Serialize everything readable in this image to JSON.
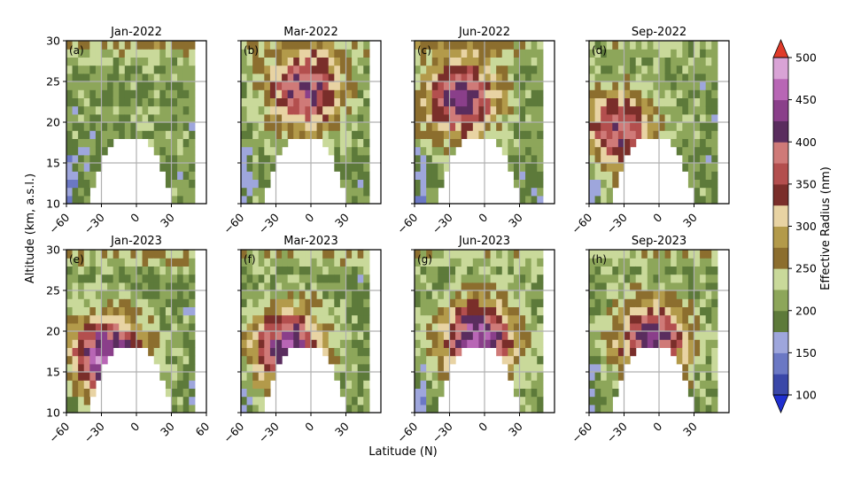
{
  "chart_data": {
    "type": "heatmap",
    "ylabel": "Altitude (km, a.s.l.)",
    "xlabel": "Latitude (N)",
    "colorbar_label": "Effective Radius (nm)",
    "x_ticks": [
      -60,
      -30,
      0,
      30
    ],
    "x_ticks_bottom_left": [
      -60,
      -30,
      0,
      30,
      60
    ],
    "y_ticks": [
      10,
      15,
      20,
      25,
      30
    ],
    "xlim": [
      -60,
      60
    ],
    "ylim": [
      10,
      30
    ],
    "colorbar": {
      "ticks": [
        100,
        150,
        200,
        250,
        300,
        350,
        400,
        450,
        500
      ],
      "levels": [
        100,
        125,
        150,
        175,
        200,
        225,
        250,
        275,
        300,
        325,
        350,
        375,
        400,
        425,
        450,
        475,
        500
      ],
      "colors": [
        "#3a47a8",
        "#6b78c4",
        "#9ea6dc",
        "#5d7a3a",
        "#8da65a",
        "#c9d99a",
        "#8c6e2e",
        "#b39a4a",
        "#e8d3a3",
        "#7a2e2a",
        "#b34f4e",
        "#cf7a78",
        "#5a2d5e",
        "#8a3f8a",
        "#b866b5",
        "#d9a3d6"
      ],
      "under_color": "#1f2fd0",
      "over_color": "#e03b2a"
    },
    "panels": [
      {
        "id": "(a)",
        "title": "Jan-2022",
        "center_radius": 210,
        "center_lat": 5,
        "center_alt": 22,
        "top_radius": 260
      },
      {
        "id": "(b)",
        "title": "Mar-2022",
        "center_radius": 420,
        "center_lat": -5,
        "center_alt": 24,
        "top_radius": 240
      },
      {
        "id": "(c)",
        "title": "Jun-2022",
        "center_radius": 430,
        "center_lat": -20,
        "center_alt": 23,
        "top_radius": 250
      },
      {
        "id": "(d)",
        "title": "Sep-2022",
        "center_radius": 400,
        "center_lat": -35,
        "center_alt": 19,
        "top_radius": 230
      },
      {
        "id": "(e)",
        "title": "Jan-2023",
        "center_radius": 470,
        "center_lat": -25,
        "center_alt": 17,
        "top_radius": 260
      },
      {
        "id": "(f)",
        "title": "Mar-2023",
        "center_radius": 440,
        "center_lat": -20,
        "center_alt": 18,
        "top_radius": 250
      },
      {
        "id": "(g)",
        "title": "Jun-2023",
        "center_radius": 460,
        "center_lat": -5,
        "center_alt": 19,
        "top_radius": 240
      },
      {
        "id": "(h)",
        "title": "Sep-2023",
        "center_radius": 420,
        "center_lat": -5,
        "center_alt": 19,
        "top_radius": 240
      }
    ]
  }
}
